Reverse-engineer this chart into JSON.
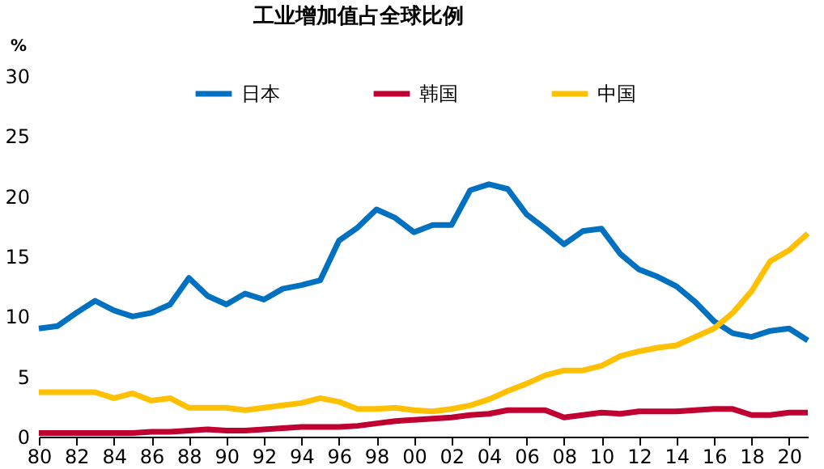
{
  "chart_data": {
    "type": "line",
    "title": "工业增加值占全球比例",
    "ylabel": "%",
    "x": [
      1980,
      1981,
      1982,
      1983,
      1984,
      1985,
      1986,
      1987,
      1988,
      1989,
      1990,
      1991,
      1992,
      1993,
      1994,
      1995,
      1996,
      1997,
      1998,
      1999,
      2000,
      2001,
      2002,
      2003,
      2004,
      2005,
      2006,
      2007,
      2008,
      2009,
      2010,
      2011,
      2012,
      2013,
      2014,
      2015,
      2016,
      2017,
      2018,
      2019,
      2020,
      2021
    ],
    "series": [
      {
        "name": "日本",
        "color": "#0070c0",
        "values": [
          9.0,
          9.2,
          10.3,
          11.3,
          10.5,
          10.0,
          10.3,
          11.0,
          13.2,
          11.7,
          11.0,
          11.9,
          11.4,
          12.3,
          12.6,
          13.0,
          16.3,
          17.4,
          18.9,
          18.2,
          17.0,
          17.6,
          17.6,
          20.5,
          21.0,
          20.6,
          18.5,
          17.3,
          16.0,
          17.1,
          17.3,
          15.2,
          13.9,
          13.3,
          12.5,
          11.2,
          9.6,
          8.6,
          8.3,
          8.8,
          9.0,
          8.0
        ]
      },
      {
        "name": "韩国",
        "color": "#c00030",
        "values": [
          0.3,
          0.3,
          0.3,
          0.3,
          0.3,
          0.3,
          0.4,
          0.4,
          0.5,
          0.6,
          0.5,
          0.5,
          0.6,
          0.7,
          0.8,
          0.8,
          0.8,
          0.9,
          1.1,
          1.3,
          1.4,
          1.5,
          1.6,
          1.8,
          1.9,
          2.2,
          2.2,
          2.2,
          1.6,
          1.8,
          2.0,
          1.9,
          2.1,
          2.1,
          2.1,
          2.2,
          2.3,
          2.3,
          1.8,
          1.8,
          2.0,
          2.0
        ]
      },
      {
        "name": "中国",
        "color": "#ffc000",
        "values": [
          3.7,
          3.7,
          3.7,
          3.7,
          3.2,
          3.6,
          3.0,
          3.2,
          2.4,
          2.4,
          2.4,
          2.2,
          2.4,
          2.6,
          2.8,
          3.2,
          2.9,
          2.3,
          2.3,
          2.4,
          2.2,
          2.1,
          2.3,
          2.6,
          3.1,
          3.8,
          4.4,
          5.1,
          5.5,
          5.5,
          5.9,
          6.7,
          7.1,
          7.4,
          7.6,
          8.3,
          9.0,
          10.3,
          12.1,
          14.6,
          15.5,
          16.9
        ]
      }
    ],
    "xlim": [
      1980,
      2021
    ],
    "xticks": [
      {
        "value": 1980,
        "label": "80"
      },
      {
        "value": 1982,
        "label": "82"
      },
      {
        "value": 1984,
        "label": "84"
      },
      {
        "value": 1986,
        "label": "86"
      },
      {
        "value": 1988,
        "label": "88"
      },
      {
        "value": 1990,
        "label": "90"
      },
      {
        "value": 1992,
        "label": "92"
      },
      {
        "value": 1994,
        "label": "94"
      },
      {
        "value": 1996,
        "label": "96"
      },
      {
        "value": 1998,
        "label": "98"
      },
      {
        "value": 2000,
        "label": "00"
      },
      {
        "value": 2002,
        "label": "02"
      },
      {
        "value": 2004,
        "label": "04"
      },
      {
        "value": 2006,
        "label": "06"
      },
      {
        "value": 2008,
        "label": "08"
      },
      {
        "value": 2010,
        "label": "10"
      },
      {
        "value": 2012,
        "label": "12"
      },
      {
        "value": 2014,
        "label": "14"
      },
      {
        "value": 2016,
        "label": "16"
      },
      {
        "value": 2018,
        "label": "18"
      },
      {
        "value": 2020,
        "label": "20"
      }
    ],
    "ylim": [
      0,
      30
    ],
    "yticks": [
      0,
      5,
      10,
      15,
      20,
      25,
      30
    ],
    "grid": false,
    "legend": "top",
    "marker": "none",
    "line_style": "solid"
  }
}
